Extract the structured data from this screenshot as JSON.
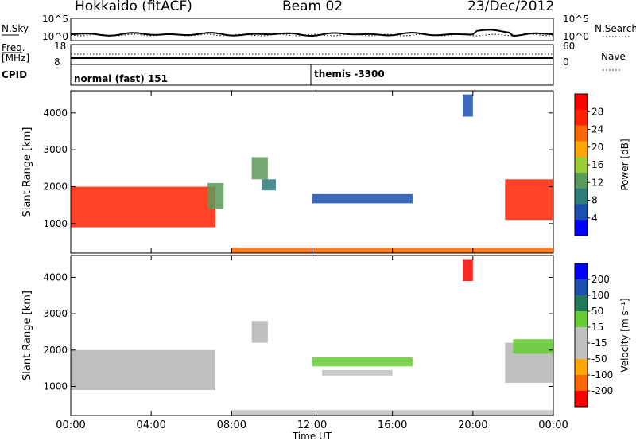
{
  "header": {
    "station": "Hokkaido (fitACF)",
    "beam": "Beam 02",
    "date": "23/Dec/2012"
  },
  "strip": {
    "nsky_label": "N.Sky",
    "nsearch_label": "N.Search",
    "noise_ticks": [
      "10^5",
      "10^0"
    ],
    "freq_label": "Freq.",
    "freq_unit": "[MHz]",
    "freq_ticks": [
      "18",
      "8"
    ],
    "nave_label": "Nave",
    "nave_ticks": [
      "60",
      "0"
    ],
    "cpid_label": "CPID",
    "cpid_programs": [
      {
        "name": "normal (fast) 151",
        "start": "00:00"
      },
      {
        "name": "themis -3300",
        "start": "12:00"
      }
    ]
  },
  "colors": {
    "power_scale": [
      "#0000ff",
      "#1a4fb0",
      "#2f7a7a",
      "#5a9a5a",
      "#9acd32",
      "#ffa500",
      "#ff6600",
      "#ff2200",
      "#ff0000"
    ],
    "velocity_scale": [
      "#0000ff",
      "#1a4fb0",
      "#1f7a5a",
      "#66cc33",
      "#c0c0c0",
      "#c0c0c0",
      "#ffa500",
      "#ff6600",
      "#ff0000"
    ],
    "ground_scatter": "#b4b4b4"
  },
  "chart_data": [
    {
      "type": "heatmap",
      "title": "",
      "ylabel": "Slant Range [km]",
      "xlabel": "Time UT",
      "xticks": [
        "00:00",
        "04:00",
        "08:00",
        "12:00",
        "16:00",
        "20:00",
        "00:00"
      ],
      "yticks": [
        1000,
        2000,
        3000,
        4000
      ],
      "ylim": [
        200,
        4600
      ],
      "xlim_hours": [
        0,
        24
      ],
      "colorbar": {
        "label": "Power [dB]",
        "ticks": [
          "4",
          "8",
          "12",
          "16",
          "20",
          "24",
          "28"
        ],
        "range": [
          0,
          30
        ]
      },
      "regions": [
        {
          "t0": 0.0,
          "t1": 7.2,
          "r0": 900,
          "r1": 2000,
          "value": 24
        },
        {
          "t0": 6.8,
          "t1": 7.6,
          "r0": 1400,
          "r1": 2100,
          "value": 12
        },
        {
          "t0": 9.0,
          "t1": 9.8,
          "r0": 2200,
          "r1": 2800,
          "value": 10
        },
        {
          "t0": 9.5,
          "t1": 10.2,
          "r0": 1900,
          "r1": 2200,
          "value": 8
        },
        {
          "t0": 12.0,
          "t1": 17.0,
          "r0": 1550,
          "r1": 1800,
          "value": 4
        },
        {
          "t0": 19.5,
          "t1": 20.0,
          "r0": 3900,
          "r1": 4500,
          "value": 4
        },
        {
          "t0": 21.6,
          "t1": 24.0,
          "r0": 1100,
          "r1": 2200,
          "value": 24
        },
        {
          "t0": 8.0,
          "t1": 24.0,
          "r0": 200,
          "r1": 350,
          "value": 20
        }
      ]
    },
    {
      "type": "heatmap",
      "title": "",
      "ylabel": "Slant Range [km]",
      "xlabel": "Time UT",
      "xticks": [
        "00:00",
        "04:00",
        "08:00",
        "12:00",
        "16:00",
        "20:00",
        "00:00"
      ],
      "yticks": [
        1000,
        2000,
        3000,
        4000
      ],
      "ylim": [
        200,
        4600
      ],
      "xlim_hours": [
        0,
        24
      ],
      "colorbar": {
        "label": "Velocity [m s⁻¹]",
        "ticks": [
          "200",
          "100",
          "50",
          "15",
          "-15",
          "-50",
          "-100",
          "-200"
        ],
        "range": [
          -250,
          250
        ]
      },
      "regions": [
        {
          "t0": 0.0,
          "t1": 7.2,
          "r0": 900,
          "r1": 2000,
          "value": 0
        },
        {
          "t0": 9.0,
          "t1": 9.8,
          "r0": 2200,
          "r1": 2800,
          "value": 0
        },
        {
          "t0": 12.0,
          "t1": 17.0,
          "r0": 1550,
          "r1": 1800,
          "value": 60
        },
        {
          "t0": 12.5,
          "t1": 16.0,
          "r0": 1300,
          "r1": 1450,
          "value": -60
        },
        {
          "t0": 19.5,
          "t1": 20.0,
          "r0": 3900,
          "r1": 4500,
          "value": -200
        },
        {
          "t0": 21.6,
          "t1": 24.0,
          "r0": 1100,
          "r1": 2200,
          "value": 0
        },
        {
          "t0": 22.0,
          "t1": 24.0,
          "r0": 1900,
          "r1": 2300,
          "value": 60
        },
        {
          "t0": 8.0,
          "t1": 24.0,
          "r0": 200,
          "r1": 350,
          "value": -60
        }
      ]
    }
  ]
}
